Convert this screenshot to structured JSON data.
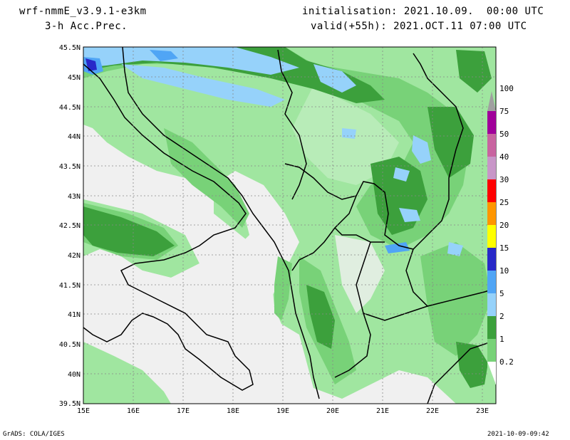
{
  "header": {
    "model": "wrf-nmmE_v3.9.1-e3km",
    "field": "3-h Acc.Prec.",
    "init": "initialisation: 2021.10.09.  00:00 UTC",
    "valid": "valid(+55h): 2021.OCT.11 07:00 UTC"
  },
  "map": {
    "lat_labels": [
      "45.5N",
      "45N",
      "44.5N",
      "44N",
      "43.5N",
      "43N",
      "42.5N",
      "42N",
      "41.5N",
      "41N",
      "40.5N",
      "40N",
      "39.5N"
    ],
    "lon_labels": [
      "15E",
      "16E",
      "17E",
      "18E",
      "19E",
      "20E",
      "21E",
      "22E",
      "23E"
    ],
    "lat_range": [
      39.5,
      45.5
    ],
    "lon_range": [
      15,
      23.25
    ]
  },
  "legend": {
    "levels": [
      "0.2",
      "1",
      "2",
      "5",
      "10",
      "15",
      "20",
      "25",
      "30",
      "40",
      "50",
      "75",
      "100"
    ],
    "colors": [
      "#a0e6a0",
      "#78d278",
      "#3ca03c",
      "#96d2fa",
      "#50a5f5",
      "#2828c8",
      "#ffff00",
      "#ff9600",
      "#ff0000",
      "#c896c8",
      "#c864a0",
      "#a0009a",
      "#a0a0a0"
    ]
  },
  "footer": {
    "left": "GrADS: COLA/IGES",
    "right": "2021-10-09-09:42"
  }
}
